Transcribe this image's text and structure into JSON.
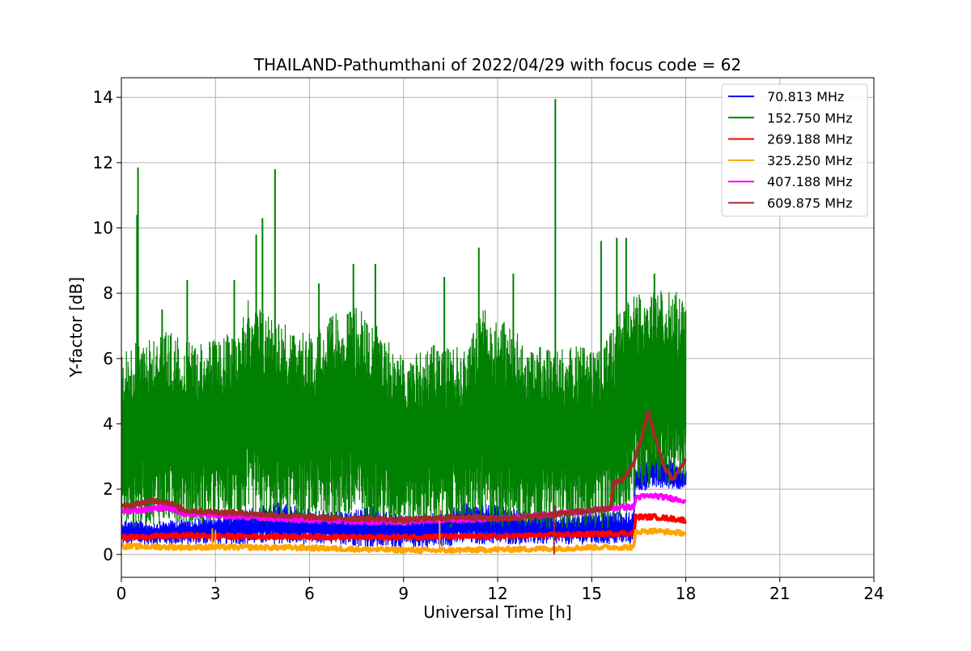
{
  "chart_data": {
    "type": "line",
    "title": "THAILAND-Pathumthani of 2022/04/29 with focus code = 62",
    "xlabel": "Universal Time [h]",
    "ylabel": "Y-factor [dB]",
    "xlim": [
      0,
      24
    ],
    "ylim": [
      -0.7,
      14.6
    ],
    "xticks": [
      0,
      3,
      6,
      9,
      12,
      15,
      18,
      21,
      24
    ],
    "yticks": [
      0,
      2,
      4,
      6,
      8,
      10,
      12,
      14
    ],
    "xtick_labels": [
      "0",
      "3",
      "6",
      "9",
      "12",
      "15",
      "18",
      "21",
      "24"
    ],
    "ytick_labels": [
      "0",
      "2",
      "4",
      "6",
      "8",
      "10",
      "12",
      "14"
    ],
    "grid": true,
    "legend_position": "top-right",
    "series": [
      {
        "name": " 70.813 MHz",
        "color": "#0000ff",
        "style": "noisy-band",
        "x": [
          0,
          1,
          2,
          3,
          4,
          5,
          6,
          7,
          8,
          9,
          10,
          11,
          12,
          13,
          14,
          15,
          16,
          16.3,
          16.4,
          17,
          18
        ],
        "low": [
          0.3,
          0.3,
          0.3,
          0.3,
          0.3,
          0.3,
          0.3,
          0.3,
          0.2,
          0.2,
          0.2,
          0.3,
          0.3,
          0.3,
          0.3,
          0.3,
          0.3,
          0.3,
          1.9,
          2.0,
          2.0
        ],
        "high": [
          1.1,
          1.0,
          1.1,
          1.2,
          1.4,
          1.6,
          1.4,
          1.3,
          1.5,
          1.2,
          1.3,
          1.6,
          1.5,
          1.3,
          1.2,
          1.3,
          1.3,
          1.3,
          2.6,
          3.2,
          2.6
        ]
      },
      {
        "name": "152.750 MHz",
        "color": "#008000",
        "style": "noisy-band",
        "x": [
          0,
          0.5,
          1,
          1.5,
          2,
          3,
          3.5,
          4,
          4.5,
          5,
          5.5,
          6,
          7,
          7.5,
          8,
          9,
          10,
          11,
          11.5,
          12,
          12.5,
          13,
          13.8,
          14,
          15,
          15.3,
          15.5,
          16,
          16.5,
          17,
          17.5,
          18
        ],
        "low": [
          0.8,
          0.8,
          0.9,
          0.9,
          0.9,
          0.9,
          0.9,
          0.9,
          0.9,
          0.9,
          0.9,
          0.9,
          0.9,
          0.9,
          0.9,
          0.9,
          0.8,
          0.8,
          0.8,
          0.8,
          0.8,
          0.8,
          0.8,
          0.8,
          0.8,
          0.8,
          0.8,
          1.0,
          2.0,
          2.1,
          2.1,
          2.1
        ],
        "high": [
          6.2,
          6.6,
          6.8,
          6.9,
          6.5,
          6.6,
          6.8,
          7.8,
          7.6,
          7.3,
          6.8,
          6.8,
          7.5,
          7.6,
          7.2,
          6.0,
          6.5,
          6.3,
          7.6,
          7.4,
          6.9,
          6.4,
          6.3,
          6.4,
          6.4,
          6.5,
          6.7,
          7.7,
          8.0,
          8.1,
          8.2,
          7.8
        ],
        "spikes": [
          [
            0.53,
            11.85
          ],
          [
            0.5,
            10.4
          ],
          [
            1.3,
            7.5
          ],
          [
            2.1,
            8.4
          ],
          [
            3.6,
            8.4
          ],
          [
            4.3,
            9.8
          ],
          [
            4.5,
            10.3
          ],
          [
            4.9,
            11.8
          ],
          [
            6.3,
            8.3
          ],
          [
            7.4,
            8.9
          ],
          [
            8.1,
            8.9
          ],
          [
            10.3,
            8.5
          ],
          [
            11.4,
            9.4
          ],
          [
            12.5,
            8.6
          ],
          [
            13.84,
            13.95
          ],
          [
            15.3,
            9.6
          ],
          [
            15.8,
            9.7
          ],
          [
            16.1,
            9.7
          ],
          [
            17.0,
            8.6
          ]
        ]
      },
      {
        "name": "269.188 MHz",
        "color": "#ff0000",
        "style": "thick-line",
        "x": [
          0,
          2,
          4,
          6,
          8,
          10,
          12,
          14,
          15,
          16,
          16.35,
          16.4,
          17,
          18
        ],
        "y": [
          0.52,
          0.58,
          0.55,
          0.55,
          0.52,
          0.55,
          0.55,
          0.6,
          0.62,
          0.65,
          0.65,
          1.15,
          1.15,
          1.05
        ]
      },
      {
        "name": "325.250 MHz",
        "color": "#ffa500",
        "style": "thick-line",
        "x": [
          0,
          2,
          4,
          6,
          8,
          10,
          12,
          14,
          15,
          16,
          16.35,
          16.4,
          17,
          18
        ],
        "y": [
          0.25,
          0.22,
          0.22,
          0.2,
          0.15,
          0.12,
          0.15,
          0.18,
          0.22,
          0.22,
          0.22,
          0.7,
          0.72,
          0.65
        ],
        "spikes": [
          [
            2.9,
            0.8
          ],
          [
            3.0,
            0.75
          ],
          [
            10.15,
            1.5
          ]
        ]
      },
      {
        "name": "407.188 MHz",
        "color": "#ff00ff",
        "style": "thick-line",
        "x": [
          0,
          1,
          1.5,
          2,
          4,
          6,
          8,
          9,
          10,
          12,
          14,
          15,
          16,
          16.35,
          16.4,
          17,
          18
        ],
        "y": [
          1.3,
          1.4,
          1.45,
          1.25,
          1.15,
          1.05,
          1.0,
          1.0,
          1.05,
          1.1,
          1.25,
          1.35,
          1.45,
          1.45,
          1.75,
          1.8,
          1.65
        ]
      },
      {
        "name": "609.875 MHz",
        "color": "#a52a2a",
        "style": "thick-line",
        "x": [
          0,
          0.5,
          1,
          1.5,
          2,
          3,
          4,
          5,
          6,
          7,
          8,
          9,
          10,
          11,
          12,
          13,
          14,
          15,
          15.6,
          15.7,
          16,
          16.3,
          16.6,
          16.8,
          17,
          17.3,
          17.6,
          18
        ],
        "y": [
          1.45,
          1.55,
          1.65,
          1.6,
          1.35,
          1.3,
          1.25,
          1.2,
          1.15,
          1.1,
          1.1,
          1.05,
          1.1,
          1.15,
          1.1,
          1.15,
          1.25,
          1.35,
          1.4,
          2.2,
          2.3,
          2.7,
          3.6,
          4.4,
          3.7,
          2.7,
          2.3,
          2.9
        ],
        "spikes": [
          [
            13.8,
            0.0
          ],
          [
            13.82,
            1.5
          ]
        ]
      }
    ]
  }
}
